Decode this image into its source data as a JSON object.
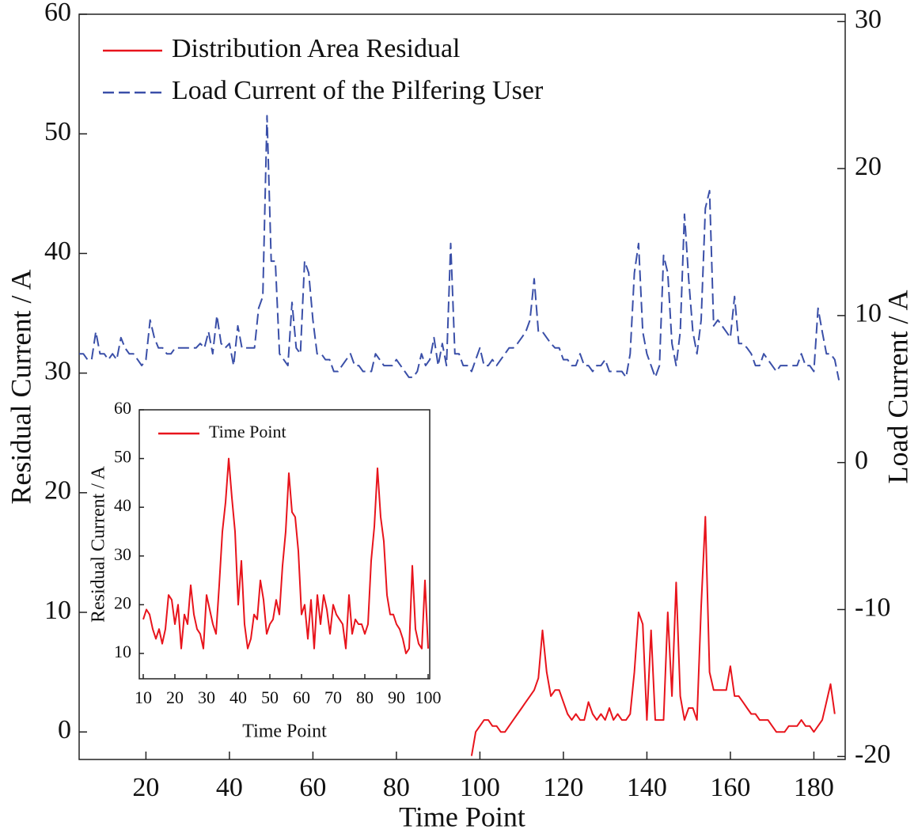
{
  "chart_data": [
    {
      "type": "line",
      "xlabel": "Time Point",
      "ylabel": "Residual Current / A",
      "y2label": "Load Current / A",
      "xlim": [
        4,
        187.5
      ],
      "ylim": [
        -2.3,
        60
      ],
      "y2lim": [
        -20.2,
        30.5
      ],
      "xticks": [
        20,
        40,
        60,
        80,
        100,
        120,
        140,
        160,
        180
      ],
      "yticks": [
        0,
        10,
        20,
        30,
        40,
        50,
        60
      ],
      "y2ticks": [
        -20,
        -10,
        0,
        10,
        20,
        30
      ],
      "legend": "upper left",
      "x": [
        4,
        5,
        6,
        7,
        8,
        9,
        10,
        11,
        12,
        13,
        14,
        15,
        16,
        17,
        18,
        19,
        20,
        21,
        22,
        23,
        24,
        25,
        26,
        27,
        28,
        29,
        30,
        31,
        32,
        33,
        34,
        35,
        36,
        37,
        38,
        39,
        40,
        41,
        42,
        43,
        44,
        45,
        46,
        47,
        48,
        49,
        50,
        51,
        52,
        53,
        54,
        55,
        56,
        57,
        58,
        59,
        60,
        61,
        62,
        63,
        64,
        65,
        66,
        67,
        68,
        69,
        70,
        71,
        72,
        73,
        74,
        75,
        76,
        77,
        78,
        79,
        80,
        81,
        82,
        83,
        84,
        85,
        86,
        87,
        88,
        89,
        90,
        91,
        92,
        93,
        94,
        95,
        96,
        97,
        98,
        99,
        100,
        101,
        102,
        103,
        104,
        105,
        106,
        107,
        108,
        109,
        110,
        111,
        112,
        113,
        114,
        115,
        116,
        117,
        118,
        119,
        120,
        121,
        122,
        123,
        124,
        125,
        126,
        127,
        128,
        129,
        130,
        131,
        132,
        133,
        134,
        135,
        136,
        137,
        138,
        139,
        140,
        141,
        142,
        143,
        144,
        145,
        146,
        147,
        148,
        149,
        150,
        151,
        152,
        153,
        154,
        155,
        156,
        157,
        158,
        159,
        160,
        161,
        162,
        163,
        164,
        165,
        166,
        167,
        168,
        169,
        170,
        171,
        172,
        173,
        174,
        175,
        176,
        177,
        178,
        179,
        180,
        181,
        182,
        183,
        184,
        185,
        186
      ],
      "series": [
        {
          "name": "Distribution Area Residual",
          "color": "#e8141c",
          "linestyle": "solid",
          "axis": "y",
          "values": [
            null,
            null,
            null,
            null,
            null,
            null,
            null,
            null,
            null,
            null,
            null,
            null,
            null,
            null,
            null,
            null,
            null,
            null,
            null,
            null,
            null,
            null,
            null,
            null,
            null,
            null,
            null,
            null,
            null,
            null,
            null,
            null,
            null,
            null,
            null,
            null,
            null,
            null,
            null,
            null,
            null,
            null,
            null,
            null,
            null,
            null,
            null,
            null,
            null,
            null,
            null,
            null,
            null,
            null,
            null,
            null,
            null,
            null,
            null,
            null,
            null,
            null,
            null,
            null,
            null,
            null,
            null,
            null,
            null,
            null,
            null,
            null,
            null,
            null,
            null,
            null,
            null,
            null,
            null,
            null,
            null,
            null,
            null,
            null,
            null,
            null,
            null,
            null,
            null,
            null,
            null,
            null,
            null,
            null,
            -2,
            0,
            0.5,
            1,
            1,
            0.5,
            0.5,
            0,
            0,
            0.5,
            1,
            1.5,
            2,
            2.5,
            3,
            3.5,
            4.5,
            8.5,
            5,
            3,
            3.5,
            3.5,
            2.5,
            1.5,
            1,
            1.5,
            1,
            1,
            2.5,
            1.5,
            1,
            1.5,
            1,
            2,
            1,
            1.5,
            1,
            1,
            1.5,
            5,
            10,
            9,
            1,
            8.5,
            1,
            1,
            1,
            10,
            3,
            12.5,
            3,
            1,
            2,
            2,
            1,
            10.5,
            18,
            5,
            3.5,
            3.5,
            3.5,
            3.5,
            5.5,
            3,
            3,
            2.5,
            2,
            1.5,
            1.5,
            1,
            1,
            1,
            0.5,
            0,
            0,
            0,
            0.5,
            0.5,
            0.5,
            1,
            0.5,
            0.5,
            0,
            0.5,
            1,
            2.5,
            4,
            1.5,
            null
          ]
        },
        {
          "name": "Load Current of the Pilfering User",
          "color": "#3a4fa8",
          "linestyle": "dashed",
          "axis": "y2",
          "values": [
            7.4,
            7.4,
            7.0,
            7.0,
            8.9,
            7.4,
            7.4,
            7.0,
            7.4,
            7.0,
            8.5,
            7.8,
            7.4,
            7.4,
            7.0,
            6.6,
            7.0,
            9.7,
            8.5,
            7.8,
            7.8,
            7.4,
            7.4,
            7.8,
            7.8,
            7.8,
            7.8,
            7.8,
            7.8,
            8.1,
            7.8,
            8.9,
            7.4,
            10.0,
            8.1,
            7.8,
            8.1,
            6.6,
            9.3,
            7.8,
            7.8,
            7.8,
            7.8,
            10.5,
            11.3,
            23.6,
            13.7,
            13.7,
            7.4,
            7.0,
            6.6,
            10.9,
            7.8,
            7.4,
            13.7,
            12.9,
            9.7,
            7.4,
            7.4,
            7.0,
            7.0,
            6.2,
            6.2,
            6.6,
            7.0,
            7.4,
            6.6,
            6.6,
            6.2,
            6.2,
            6.2,
            7.4,
            7.0,
            6.6,
            6.6,
            6.6,
            7.0,
            6.6,
            6.2,
            5.8,
            5.8,
            6.2,
            7.4,
            6.6,
            7.0,
            8.5,
            6.6,
            8.1,
            6.6,
            14.9,
            7.4,
            7.4,
            6.6,
            6.6,
            6.2,
            7.0,
            7.8,
            6.6,
            6.6,
            7.0,
            6.6,
            7.0,
            7.4,
            7.8,
            7.8,
            8.1,
            8.5,
            8.9,
            9.7,
            12.5,
            8.9,
            8.9,
            8.5,
            8.1,
            7.8,
            7.8,
            7.0,
            7.0,
            6.6,
            6.6,
            7.4,
            6.6,
            6.6,
            6.2,
            6.6,
            6.6,
            7.0,
            6.2,
            6.2,
            6.2,
            6.2,
            5.8,
            7.4,
            12.9,
            14.9,
            8.9,
            7.4,
            6.6,
            5.8,
            6.6,
            14.1,
            12.9,
            8.1,
            6.6,
            8.9,
            16.9,
            12.5,
            8.9,
            7.4,
            9.7,
            17.3,
            18.5,
            9.3,
            9.7,
            9.3,
            8.9,
            8.5,
            11.3,
            8.1,
            8.1,
            7.8,
            7.4,
            6.6,
            6.6,
            7.4,
            7.0,
            6.6,
            6.2,
            6.6,
            6.6,
            6.6,
            6.6,
            6.6,
            7.4,
            6.6,
            6.6,
            6.2,
            10.5,
            8.9,
            7.4,
            7.4,
            7.0,
            5.6
          ]
        }
      ]
    },
    {
      "type": "line",
      "xlabel": "Time Point",
      "ylabel": "Residual Current / A",
      "xlim": [
        8.75,
        100.5
      ],
      "ylim": [
        4.8,
        60
      ],
      "xticks": [
        10,
        20,
        30,
        40,
        50,
        60,
        70,
        80,
        90,
        100
      ],
      "yticks": [
        10,
        20,
        30,
        40,
        50,
        60
      ],
      "legend": "upper left",
      "x": [
        10,
        11,
        12,
        13,
        14,
        15,
        16,
        17,
        18,
        19,
        20,
        21,
        22,
        23,
        24,
        25,
        26,
        27,
        28,
        29,
        30,
        31,
        32,
        33,
        34,
        35,
        36,
        37,
        38,
        39,
        40,
        41,
        42,
        43,
        44,
        45,
        46,
        47,
        48,
        49,
        50,
        51,
        52,
        53,
        54,
        55,
        56,
        57,
        58,
        59,
        60,
        61,
        62,
        63,
        64,
        65,
        66,
        67,
        68,
        69,
        70,
        71,
        72,
        73,
        74,
        75,
        76,
        77,
        78,
        79,
        80,
        81,
        82,
        83,
        84,
        85,
        86,
        87,
        88,
        89,
        90,
        91,
        92,
        93,
        94,
        95,
        96,
        97,
        98,
        99,
        100
      ],
      "series": [
        {
          "name": "Time Point",
          "color": "#e8141c",
          "linestyle": "solid",
          "axis": "y",
          "values": [
            17,
            19,
            18,
            15,
            13,
            15,
            12,
            15,
            22,
            21,
            16,
            20,
            11,
            18,
            16,
            24,
            18,
            15,
            14,
            11,
            22,
            19,
            16,
            14,
            24,
            35,
            41,
            50,
            42,
            35,
            20,
            29,
            16,
            11,
            13,
            18,
            17,
            25,
            21,
            14,
            16,
            17,
            21,
            18,
            28,
            35,
            47,
            39,
            38,
            31,
            18,
            20,
            13,
            21,
            11,
            22,
            16,
            22,
            19,
            14,
            20,
            18,
            17,
            16,
            11,
            22,
            14,
            17,
            16,
            16,
            14,
            16,
            29,
            36,
            48,
            38,
            33,
            22,
            18,
            18,
            16,
            15,
            13,
            10,
            11,
            28,
            15,
            12,
            11,
            25,
            11
          ]
        }
      ]
    }
  ]
}
